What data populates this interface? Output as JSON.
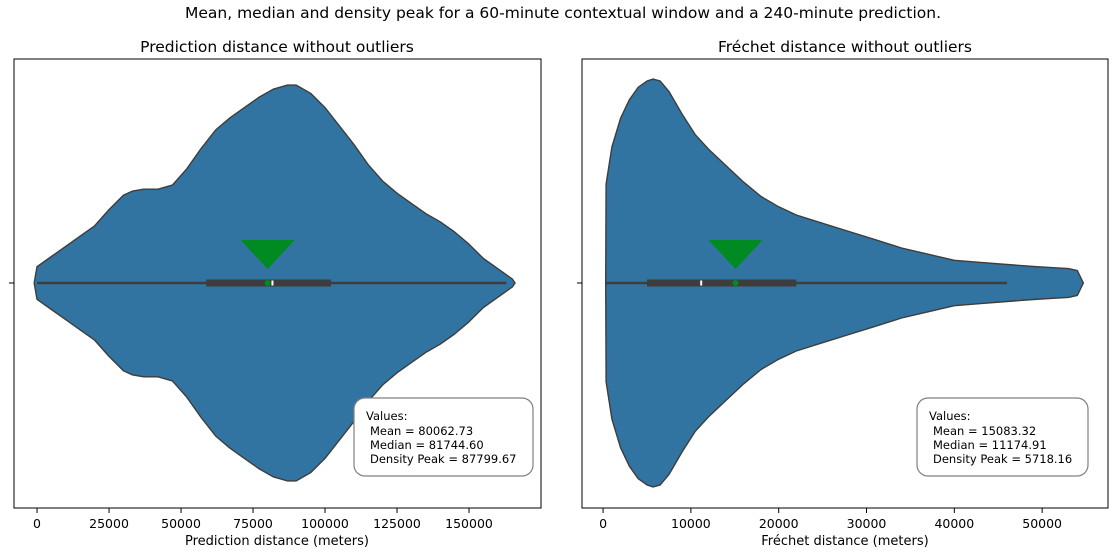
{
  "figure_title": "Mean, median and density peak for a 60-minute contextual window and a 240-minute prediction.",
  "chart_data": [
    {
      "type": "violin",
      "title": "Prediction distance without outliers",
      "xlabel": "Prediction distance (meters)",
      "ylabel": "",
      "xlim": [
        -8000,
        175000
      ],
      "xticks": [
        0,
        25000,
        50000,
        75000,
        100000,
        125000,
        150000
      ],
      "xtick_labels": [
        "0",
        "25000",
        "50000",
        "75000",
        "100000",
        "125000",
        "150000"
      ],
      "violin_color": "#3274a1",
      "density_profile": {
        "x": [
          -1000,
          0,
          5000,
          10000,
          15000,
          20000,
          25000,
          30000,
          33000,
          37000,
          42000,
          47000,
          52000,
          57000,
          62000,
          67000,
          72000,
          77000,
          82000,
          87000,
          90000,
          95000,
          100000,
          105000,
          110000,
          115000,
          120000,
          125000,
          130000,
          135000,
          140000,
          145000,
          150000,
          155000,
          160000,
          163000,
          165000,
          166000
        ],
        "half_width": [
          0.0,
          0.08,
          0.13,
          0.18,
          0.23,
          0.28,
          0.36,
          0.43,
          0.45,
          0.46,
          0.46,
          0.48,
          0.56,
          0.66,
          0.75,
          0.81,
          0.86,
          0.91,
          0.95,
          0.97,
          0.97,
          0.93,
          0.86,
          0.77,
          0.68,
          0.58,
          0.5,
          0.44,
          0.39,
          0.34,
          0.3,
          0.25,
          0.19,
          0.12,
          0.07,
          0.04,
          0.02,
          0.0
        ]
      },
      "whisker_range": [
        0,
        163000
      ],
      "quartiles": [
        58700,
        102100
      ],
      "mean": 80062.73,
      "median": 81744.6,
      "density_peak": 87799.67,
      "mean_marker_color": "#008a22",
      "annotation": {
        "header": "Values:",
        "lines": [
          "Mean = 80062.73",
          "Median = 81744.60",
          "Density Peak = 87799.67"
        ],
        "location": "lower-right"
      }
    },
    {
      "type": "violin",
      "title": "Fréchet distance without outliers",
      "xlabel": "Fréchet distance (meters)",
      "ylabel": "",
      "xlim": [
        -2400,
        57500
      ],
      "xticks": [
        0,
        10000,
        20000,
        30000,
        40000,
        50000
      ],
      "xtick_labels": [
        "0",
        "10000",
        "20000",
        "30000",
        "40000",
        "50000"
      ],
      "violin_color": "#3274a1",
      "density_profile": {
        "x": [
          300,
          350,
          1000,
          2000,
          3000,
          4000,
          5000,
          5700,
          6500,
          7500,
          9000,
          10500,
          12000,
          14000,
          16000,
          18000,
          20000,
          22000,
          25000,
          28000,
          31000,
          34000,
          37000,
          40000,
          43000,
          46000,
          49000,
          51000,
          53000,
          54000,
          54700
        ],
        "half_width": [
          0.0,
          0.48,
          0.66,
          0.8,
          0.89,
          0.95,
          0.98,
          0.99,
          0.98,
          0.93,
          0.82,
          0.72,
          0.65,
          0.57,
          0.49,
          0.42,
          0.37,
          0.33,
          0.29,
          0.25,
          0.21,
          0.17,
          0.14,
          0.11,
          0.1,
          0.09,
          0.08,
          0.075,
          0.07,
          0.06,
          0.0
        ]
      },
      "whisker_range": [
        300,
        46000
      ],
      "quartiles": [
        5000,
        22000
      ],
      "mean": 15083.32,
      "median": 11174.91,
      "density_peak": 5718.16,
      "mean_marker_color": "#008a22",
      "annotation": {
        "header": "Values:",
        "lines": [
          "Mean = 15083.32",
          "Median = 11174.91",
          "Density Peak = 5718.16"
        ],
        "location": "lower-right"
      }
    }
  ]
}
